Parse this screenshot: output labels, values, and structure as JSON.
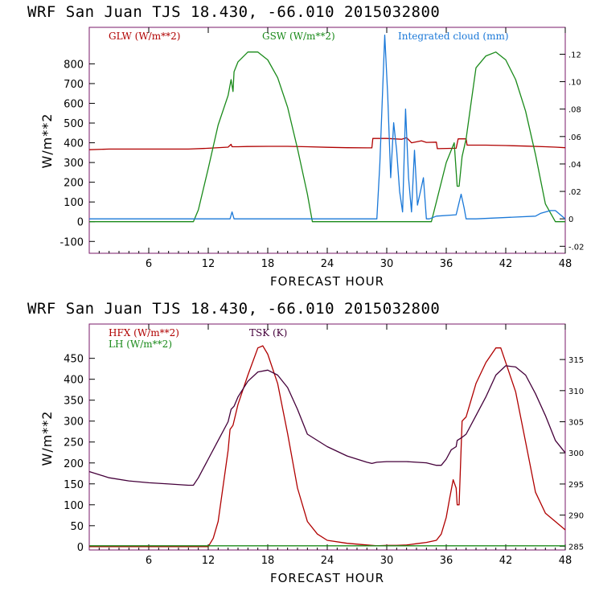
{
  "chart_data": [
    {
      "type": "line",
      "title": "WRF  San Juan TJS  18.430, -66.010  2015032800",
      "xlabel": "FORECAST HOUR",
      "ylabel": "W/m**2",
      "xlim": [
        0,
        48
      ],
      "ylim": [
        -160,
        985
      ],
      "y2lim": [
        -0.0251,
        0.1396
      ],
      "x_ticks": [
        "6",
        "12",
        "18",
        "24",
        "30",
        "36",
        "42",
        "48"
      ],
      "y_ticks": [
        "-100",
        "0",
        "100",
        "200",
        "300",
        "400",
        "500",
        "600",
        "700",
        "800"
      ],
      "y2_ticks": [
        ".12",
        ".10",
        ".08",
        ".06",
        ".04",
        ".02",
        "0",
        "-.02"
      ],
      "series": [
        {
          "name": "GLW (W/m**2)",
          "axis": "left",
          "color": "#b00000",
          "x": [
            0,
            2,
            4,
            6,
            8,
            10,
            12,
            14,
            14.3,
            14.4,
            15,
            16,
            18,
            20,
            22,
            24,
            26,
            28,
            28.5,
            28.6,
            30,
            31.5,
            32,
            32.5,
            33.5,
            34,
            35,
            35.1,
            37,
            37.2,
            38,
            38.1,
            40,
            42,
            44,
            46,
            47,
            48
          ],
          "y": [
            365,
            368,
            368,
            368,
            368,
            368,
            372,
            378,
            392,
            380,
            380,
            381,
            382,
            382,
            380,
            377,
            375,
            374,
            374,
            422,
            422,
            418,
            426,
            400,
            410,
            402,
            403,
            370,
            372,
            420,
            420,
            388,
            388,
            386,
            383,
            380,
            378,
            375
          ]
        },
        {
          "name": "GSW (W/m**2)",
          "axis": "left",
          "color": "#1a8a1a",
          "x": [
            0,
            10.5,
            11,
            12,
            13,
            14,
            14.3,
            14.5,
            14.6,
            15,
            16,
            17,
            18,
            19,
            20,
            21,
            22,
            22.5,
            34.5,
            35,
            36,
            36.8,
            37.1,
            37.3,
            37.6,
            38,
            38.5,
            39,
            40,
            41,
            42,
            43,
            44,
            45,
            46,
            47,
            48
          ],
          "y": [
            0,
            0,
            60,
            270,
            490,
            640,
            720,
            660,
            760,
            810,
            860,
            860,
            820,
            730,
            580,
            370,
            140,
            0,
            0,
            100,
            300,
            400,
            180,
            180,
            330,
            420,
            600,
            780,
            840,
            860,
            820,
            720,
            560,
            340,
            90,
            0,
            0
          ],
          "labels": [
            "0"
          ]
        },
        {
          "name": "Integrated cloud (mm)",
          "axis": "right",
          "color": "#1a78d8",
          "x": [
            0,
            14.2,
            14.4,
            14.6,
            29,
            29.3,
            29.8,
            30.1,
            30.4,
            30.7,
            31,
            31.3,
            31.6,
            31.9,
            32.2,
            32.5,
            32.8,
            33.1,
            33.4,
            33.7,
            34,
            34.3,
            35,
            37,
            37.5,
            37.8,
            38,
            38.3,
            39,
            45,
            45.5,
            46.5,
            47,
            48
          ],
          "y": [
            0,
            0,
            0.005,
            0,
            0,
            0.04,
            0.134,
            0.09,
            0.03,
            0.07,
            0.05,
            0.02,
            0.005,
            0.08,
            0.03,
            0.005,
            0.05,
            0.01,
            0.02,
            0.03,
            0,
            0,
            0.002,
            0.003,
            0.018,
            0.008,
            0,
            0,
            0,
            0.002,
            0.004,
            0.006,
            0.006,
            0
          ]
        }
      ],
      "legend": [
        "GLW (W/m**2)",
        "GSW (W/m**2)",
        "Integrated cloud (mm)"
      ]
    },
    {
      "type": "line",
      "title": "WRF  San Juan TJS  18.430, -66.010  2015032800",
      "xlabel": "FORECAST HOUR",
      "ylabel": "W/m**2",
      "xlim": [
        0,
        48
      ],
      "ylim": [
        -8,
        532
      ],
      "y2lim": [
        284.4,
        320.7
      ],
      "x_ticks": [
        "6",
        "12",
        "18",
        "24",
        "30",
        "36",
        "42",
        "48"
      ],
      "y_ticks": [
        "0",
        "50",
        "100",
        "150",
        "200",
        "250",
        "300",
        "350",
        "400",
        "450"
      ],
      "y2_ticks": [
        "315",
        "310",
        "305",
        "300",
        "295",
        "290",
        "285"
      ],
      "series": [
        {
          "name": "HFX (W/m**2)",
          "axis": "left",
          "color": "#b00000",
          "x": [
            0,
            4,
            8,
            10,
            11,
            12,
            12.5,
            13,
            14,
            14.2,
            14.5,
            15,
            16,
            17,
            17.5,
            18,
            19,
            20,
            21,
            22,
            23,
            24,
            26,
            28,
            29,
            30,
            31,
            32,
            33,
            34,
            35,
            35.5,
            36,
            36.3,
            36.7,
            37,
            37.1,
            37.3,
            37.6,
            38,
            39,
            40,
            41,
            41.5,
            42,
            43,
            44,
            45,
            46,
            47,
            48
          ],
          "y": [
            0,
            0,
            0,
            0,
            0,
            0,
            20,
            60,
            230,
            280,
            290,
            340,
            410,
            475,
            480,
            460,
            390,
            270,
            140,
            60,
            30,
            15,
            8,
            4,
            2,
            3,
            3,
            4,
            7,
            10,
            15,
            30,
            70,
            110,
            160,
            140,
            100,
            100,
            300,
            310,
            390,
            440,
            475,
            475,
            440,
            370,
            250,
            130,
            80,
            60,
            40
          ]
        },
        {
          "name": "LH (W/m**2)",
          "axis": "left",
          "color": "#1a8a1a",
          "x": [
            0,
            10,
            20,
            30,
            40,
            48
          ],
          "y": [
            2,
            2,
            2,
            2,
            2,
            2
          ]
        },
        {
          "name": "TSK (K)",
          "axis": "right",
          "color": "#44003a",
          "x": [
            0,
            2,
            4,
            6,
            8,
            10,
            10.5,
            11,
            12,
            13,
            14,
            14.3,
            14.6,
            15,
            16,
            17,
            18,
            19,
            20,
            21,
            22,
            24,
            26,
            28,
            28.5,
            29,
            30,
            31,
            32,
            33,
            34,
            35,
            35.5,
            36,
            36.5,
            37,
            37.1,
            37.6,
            38,
            39,
            40,
            41,
            42,
            43,
            44,
            45,
            46,
            47,
            48
          ],
          "y": [
            297,
            296,
            295.5,
            295.2,
            295,
            294.8,
            294.8,
            296,
            299,
            302,
            305,
            307,
            307.5,
            309,
            311.5,
            313,
            313.3,
            312.5,
            310.5,
            307,
            303,
            301,
            299.5,
            298.5,
            298.3,
            298.5,
            298.6,
            298.6,
            298.6,
            298.5,
            298.4,
            298,
            298,
            299,
            300.5,
            301,
            302,
            302.5,
            303,
            306,
            309,
            312.5,
            314,
            313.8,
            312.5,
            309.5,
            306,
            302,
            300
          ]
        }
      ],
      "legend": [
        "HFX (W/m**2)",
        "LH  (W/m**2)",
        "TSK (K)"
      ]
    }
  ],
  "panels": [
    {
      "title": "WRF  San Juan TJS  18.430, -66.010  2015032800",
      "xlabel": "FORECAST HOUR",
      "ylabel": "W/m**2",
      "legend": {
        "a": "GLW (W/m**2)",
        "b": "GSW (W/m**2)",
        "c": "Integrated cloud (mm)"
      }
    },
    {
      "title": "WRF  San Juan TJS  18.430, -66.010  2015032800",
      "xlabel": "FORECAST HOUR",
      "ylabel": "W/m**2",
      "legend": {
        "a": "HFX (W/m**2)",
        "b": "LH  (W/m**2)",
        "c": "TSK (K)"
      }
    }
  ],
  "colors": {
    "red": "#b00000",
    "green": "#1a8a1a",
    "blue": "#1a78d8",
    "purple": "#44003a",
    "frame": "#7a1a6a"
  }
}
